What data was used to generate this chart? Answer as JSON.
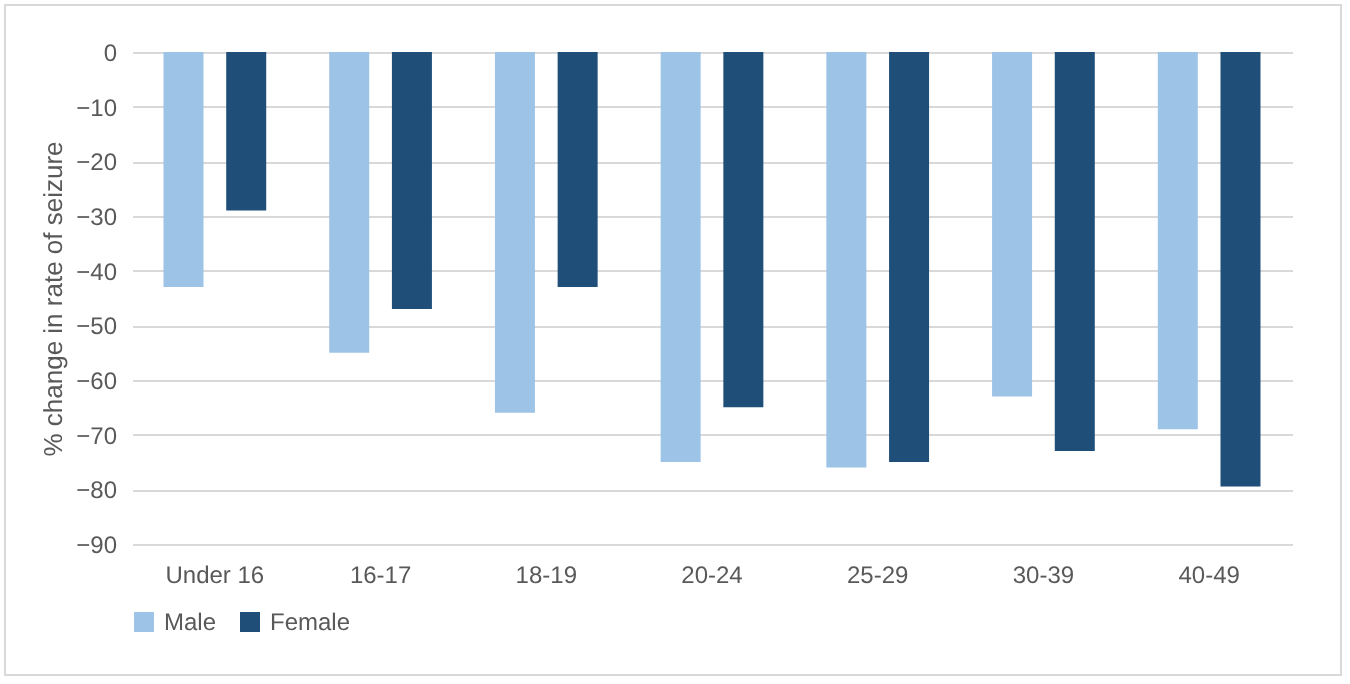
{
  "chart_data": {
    "type": "bar",
    "ylabel": "% change in rate of seizure",
    "categories": [
      "Under 16",
      "16-17",
      "18-19",
      "20-24",
      "25-29",
      "30-39",
      "40-49"
    ],
    "series": [
      {
        "name": "Male",
        "color": "#9dc3e6",
        "values": [
          -43,
          -55,
          -66,
          -75,
          -76,
          -63,
          -69
        ]
      },
      {
        "name": "Female",
        "color": "#1f4e79",
        "values": [
          -29,
          -47,
          -43,
          -65,
          -75,
          -73,
          -79.5
        ]
      }
    ],
    "ylim": [
      -90,
      0
    ],
    "yticks": [
      0,
      -10,
      -20,
      -30,
      -40,
      -50,
      -60,
      -70,
      -80,
      -90
    ],
    "grid": "y",
    "legend": "bottom"
  }
}
